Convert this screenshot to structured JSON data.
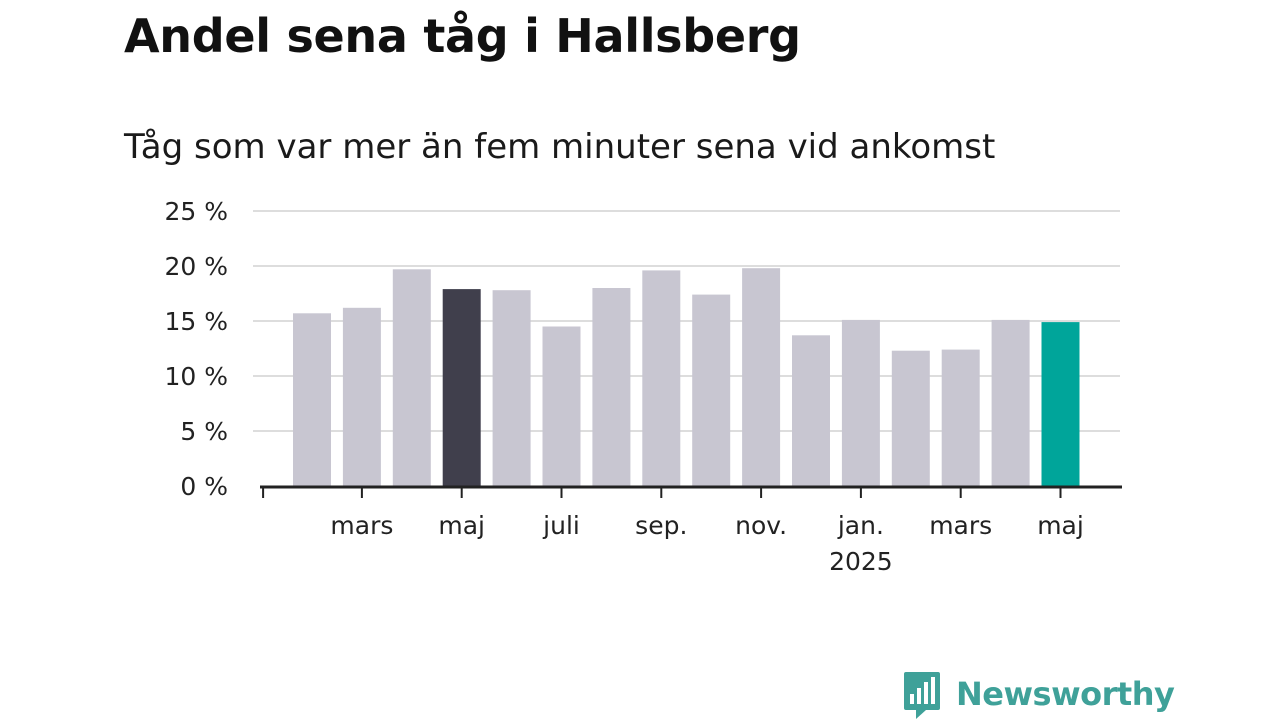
{
  "colors": {
    "bar_default": "#c8c6d1",
    "bar_highlight_dark": "#403f4c",
    "bar_highlight_accent": "#00a59a",
    "grid": "#dddddd",
    "axis": "#222222",
    "brand": "#3fa199"
  },
  "chart_data": {
    "type": "bar",
    "title": "Andel sena tåg i Hallsberg",
    "subtitle": "Tåg som var mer än fem minuter sena vid ankomst",
    "xlabel": "",
    "ylabel": "",
    "ylim": [
      0,
      25
    ],
    "y_ticks": [
      0,
      5,
      10,
      15,
      20,
      25
    ],
    "y_tick_labels": [
      "0 %",
      "5 %",
      "10 %",
      "15 %",
      "20 %",
      "25 %"
    ],
    "grid": true,
    "categories": [
      "2024-02",
      "2024-03",
      "2024-04",
      "2024-05",
      "2024-06",
      "2024-07",
      "2024-08",
      "2024-09",
      "2024-10",
      "2024-11",
      "2024-12",
      "2025-01",
      "2025-02",
      "2025-03",
      "2025-04",
      "2025-05"
    ],
    "values": [
      15.7,
      16.2,
      19.7,
      17.9,
      17.8,
      14.5,
      18.0,
      19.6,
      17.4,
      19.8,
      13.7,
      15.1,
      12.3,
      12.4,
      15.1,
      14.9
    ],
    "highlight": [
      {
        "index": 3,
        "color_key": "bar_highlight_dark"
      },
      {
        "index": 15,
        "color_key": "bar_highlight_accent"
      }
    ],
    "x_tick_labels": [
      {
        "index": 1,
        "label": "mars",
        "sub": ""
      },
      {
        "index": 3,
        "label": "maj",
        "sub": ""
      },
      {
        "index": 5,
        "label": "juli",
        "sub": ""
      },
      {
        "index": 7,
        "label": "sep.",
        "sub": ""
      },
      {
        "index": 9,
        "label": "nov.",
        "sub": ""
      },
      {
        "index": 11,
        "label": "jan.",
        "sub": "2025"
      },
      {
        "index": 13,
        "label": "mars",
        "sub": ""
      },
      {
        "index": 15,
        "label": "maj",
        "sub": ""
      }
    ]
  },
  "brand": {
    "name": "Newsworthy",
    "icon": "newsworthy-logo-icon"
  }
}
